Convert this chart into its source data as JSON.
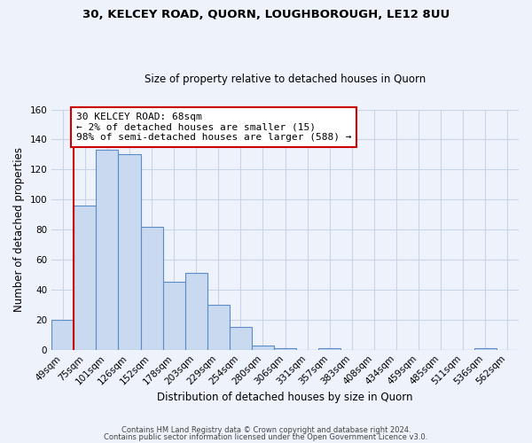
{
  "title_line1": "30, KELCEY ROAD, QUORN, LOUGHBOROUGH, LE12 8UU",
  "title_line2": "Size of property relative to detached houses in Quorn",
  "xlabel": "Distribution of detached houses by size in Quorn",
  "ylabel": "Number of detached properties",
  "bar_labels": [
    "49sqm",
    "75sqm",
    "101sqm",
    "126sqm",
    "152sqm",
    "178sqm",
    "203sqm",
    "229sqm",
    "254sqm",
    "280sqm",
    "306sqm",
    "331sqm",
    "357sqm",
    "383sqm",
    "408sqm",
    "434sqm",
    "459sqm",
    "485sqm",
    "511sqm",
    "536sqm",
    "562sqm"
  ],
  "bar_values": [
    20,
    96,
    133,
    130,
    82,
    45,
    51,
    30,
    15,
    3,
    1,
    0,
    1,
    0,
    0,
    0,
    0,
    0,
    0,
    1,
    0
  ],
  "bar_color": "#c9d9f0",
  "bar_edge_color": "#5b8cc8",
  "annotation_line1": "30 KELCEY ROAD: 68sqm",
  "annotation_line2": "← 2% of detached houses are smaller (15)",
  "annotation_line3": "98% of semi-detached houses are larger (588) →",
  "annotation_box_color": "#ffffff",
  "annotation_box_edge_color": "#cc0000",
  "marker_line_color": "#cc0000",
  "ylim": [
    0,
    160
  ],
  "yticks": [
    0,
    20,
    40,
    60,
    80,
    100,
    120,
    140,
    160
  ],
  "grid_color": "#c8d4e8",
  "bg_color": "#eef2fa",
  "footer_line1": "Contains HM Land Registry data © Crown copyright and database right 2024.",
  "footer_line2": "Contains public sector information licensed under the Open Government Licence v3.0."
}
